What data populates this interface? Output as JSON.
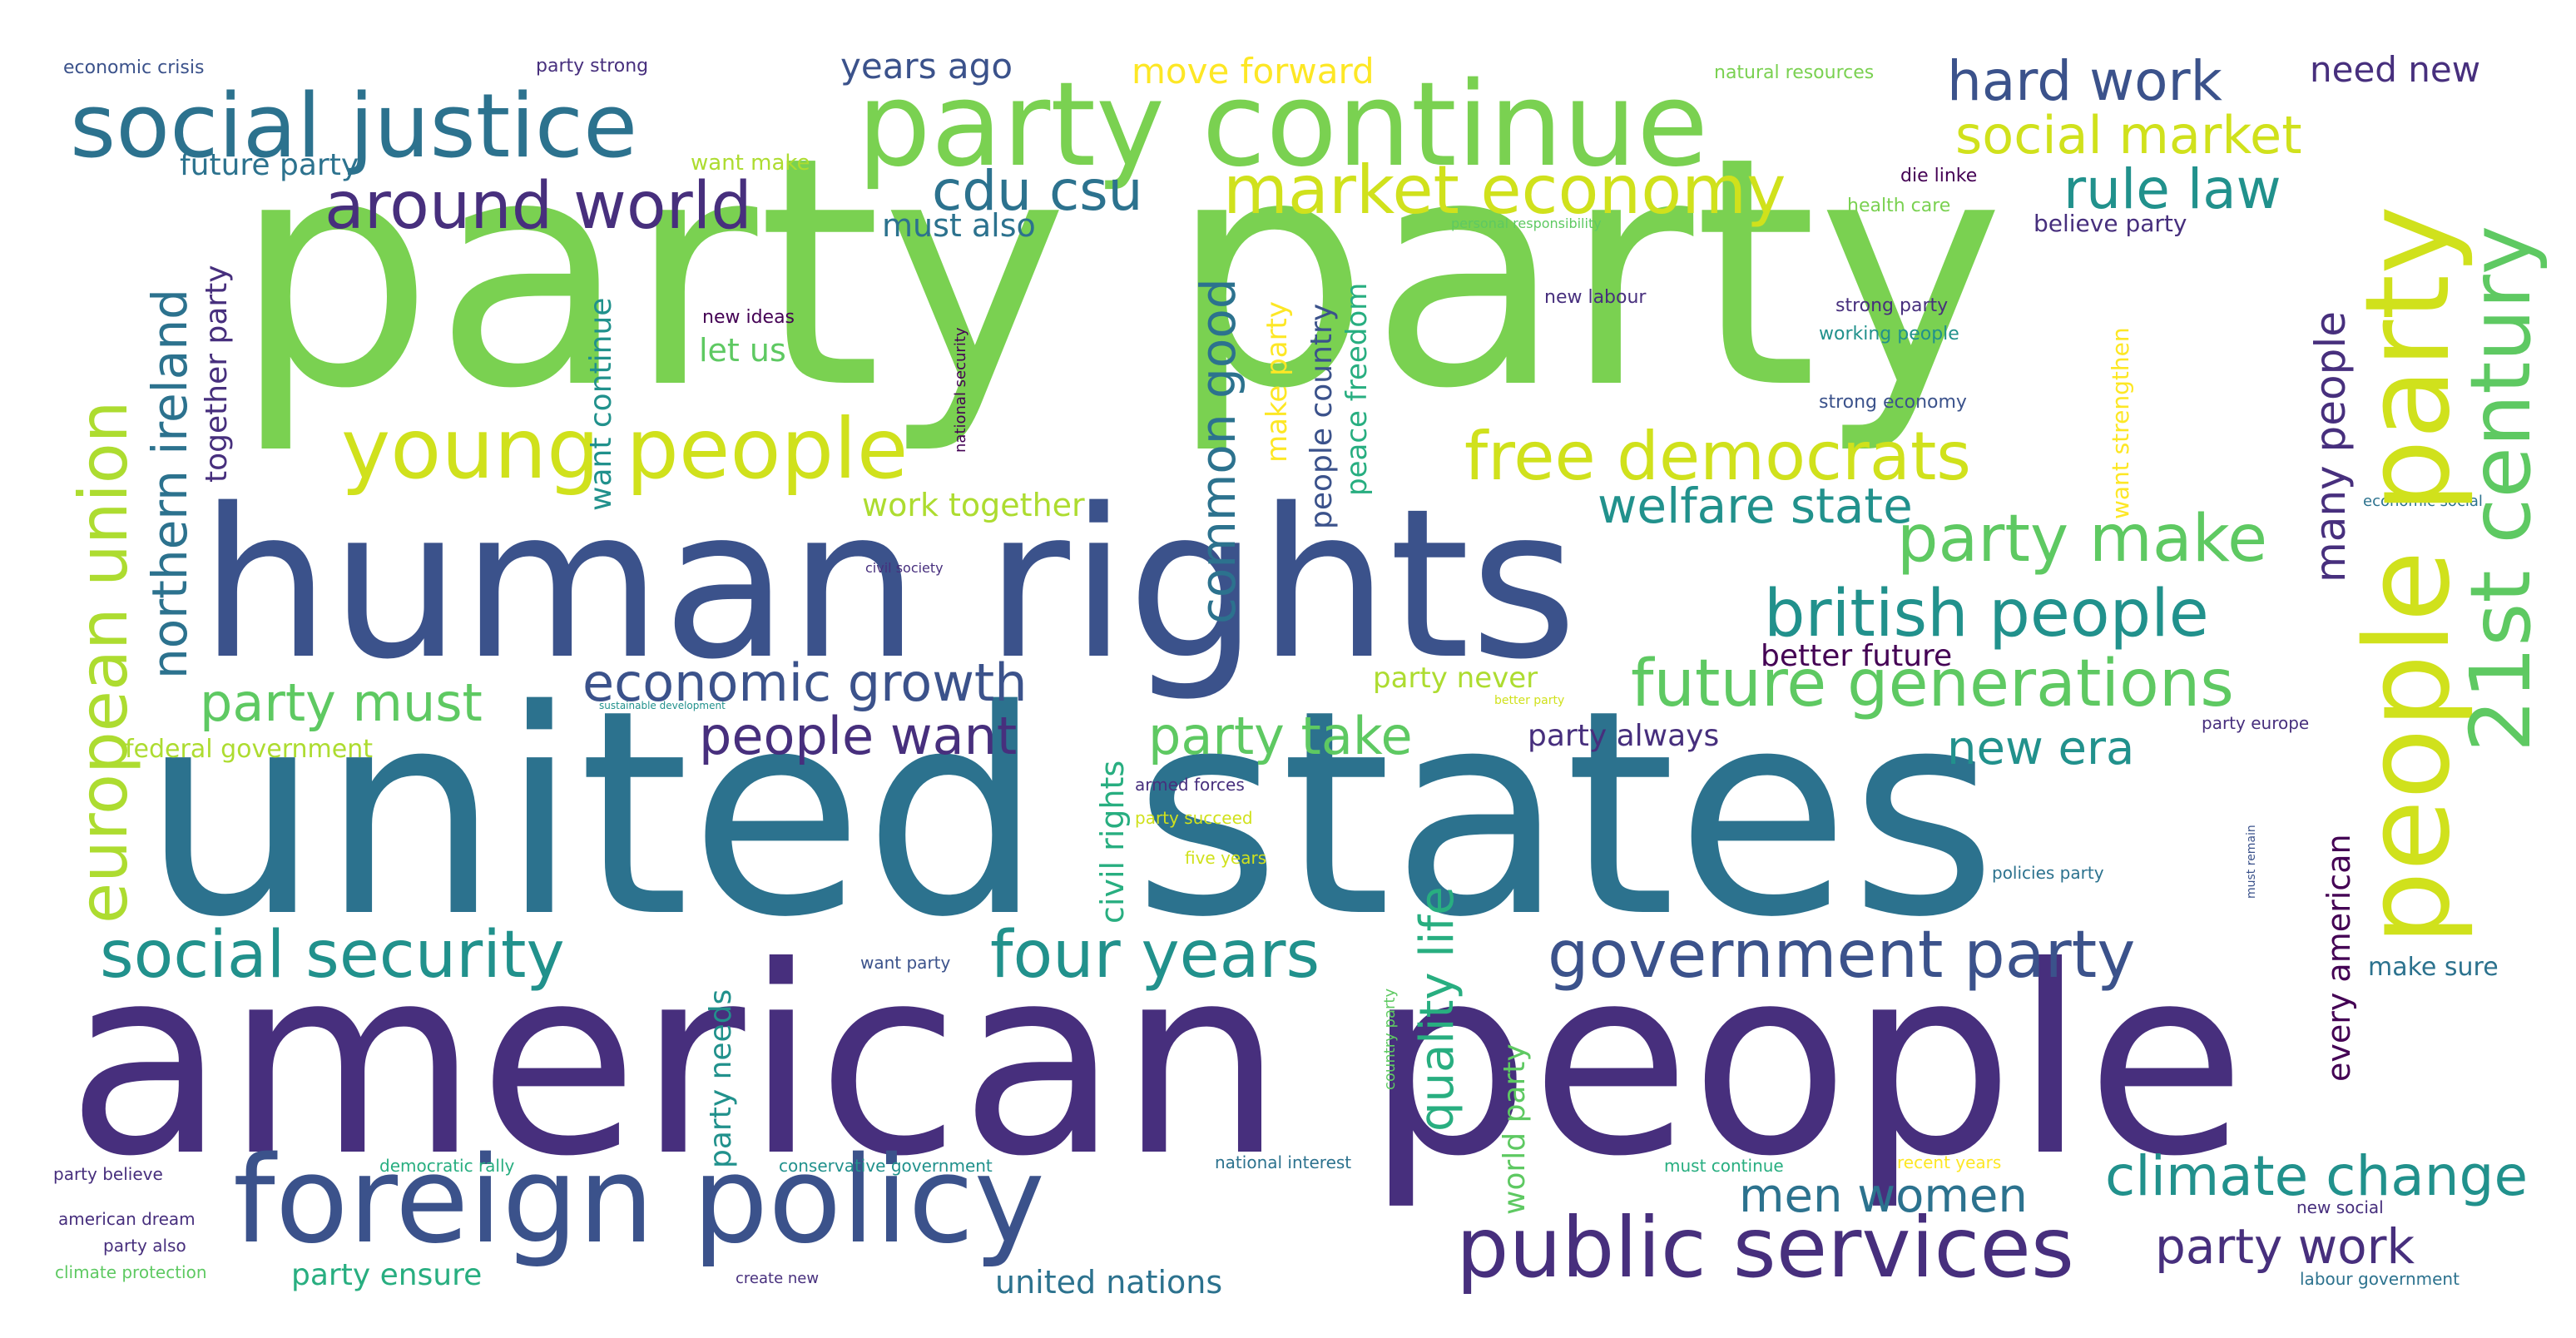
{
  "palette": {
    "p1": "#440154",
    "p2": "#472f7d",
    "p3": "#3b528b",
    "p4": "#2c728e",
    "p5": "#21918c",
    "p6": "#28ae80",
    "p7": "#5ec962",
    "p8": "#7ad151",
    "p9": "#addc30",
    "p10": "#d0e11c",
    "p11": "#fde725"
  },
  "words": {
    "party_party": "party party",
    "human_rights": "human rights",
    "united_states": "united states",
    "american_people": "american people",
    "party_continue": "party continue",
    "social_justice": "social justice",
    "foreign_policy": "foreign policy",
    "young_people": "young people",
    "european_union": "european union",
    "people_party": "people party",
    "century_21st": "21st century",
    "market_economy": "market economy",
    "free_democrats": "free democrats",
    "public_services": "public services",
    "government_party": "government party",
    "future_generations": "future generations",
    "around_world": "around world",
    "social_security": "social security",
    "four_years": "four years",
    "british_people": "british people",
    "party_make": "party make",
    "hard_work": "hard work",
    "social_market": "social market",
    "cdu_csu": "cdu csu",
    "northern_ireland": "northern ireland",
    "rule_law": "rule law",
    "economic_growth": "economic growth",
    "welfare_state": "welfare state",
    "common_good": "common good",
    "quality_life": "quality life",
    "climate_change": "climate change",
    "party_take": "party take",
    "people_want": "people want",
    "party_must": "party must",
    "men_women": "men women",
    "party_work": "party work",
    "new_era": "new era",
    "years_ago": "years ago",
    "move_forward": "move forward",
    "need_new": "need new",
    "many_people": "many people",
    "civil_rights": "civil rights",
    "every_american": "every american",
    "united_nations": "united nations",
    "future_party": "future party",
    "must_also": "must also",
    "together_party": "together party",
    "want_continue": "want continue",
    "let_us": "let us",
    "work_together": "work together",
    "make_party": "make party",
    "people_country": "people country",
    "peace_freedom": "peace freedom",
    "party_ensure": "party ensure",
    "party_needs": "party needs",
    "world_party": "world party",
    "party_always": "party always",
    "better_future": "better future",
    "party_never": "party never",
    "federal_government": "federal government",
    "make_sure": "make sure",
    "want_strengthen": "want strengthen",
    "believe_party": "believe party",
    "want_make": "want make",
    "economic_crisis": "economic crisis",
    "party_strong": "party strong",
    "natural_resources": "natural resources",
    "die_linke": "die linke",
    "health_care": "health care",
    "personal_responsibility": "personal responsibility",
    "new_ideas": "new ideas",
    "national_security": "national security",
    "new_labour": "new labour",
    "strong_party": "strong party",
    "working_people": "working people",
    "strong_economy": "strong economy",
    "economic_social": "economic social",
    "civil_society": "civil society",
    "sustainable_development": "sustainable development",
    "better_party": "better party",
    "party_europe": "party europe",
    "armed_forces": "armed forces",
    "party_succeed": "party succeed",
    "five_years": "five years",
    "policies_party": "policies party",
    "must_remain": "must remain",
    "want_party": "want party",
    "country_party": "country party",
    "party_believe": "party believe",
    "democratic_rally": "democratic rally",
    "conservative_government": "conservative government",
    "national_interest": "national interest",
    "must_continue": "must continue",
    "recent_years": "recent years",
    "american_dream": "american dream",
    "party_also": "party also",
    "climate_protection": "climate protection",
    "create_new": "create new",
    "new_social": "new social",
    "labour_government": "labour government"
  }
}
